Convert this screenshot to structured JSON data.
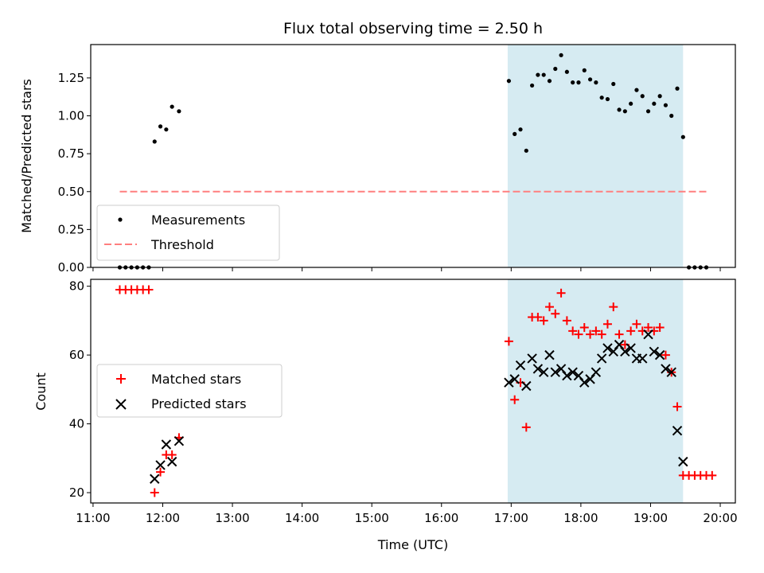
{
  "chart_data": {
    "title": "Flux total observing time = 2.50 h",
    "xlabel": "Time (UTC)",
    "x_ticks": [
      "11:00",
      "12:00",
      "13:00",
      "14:00",
      "15:00",
      "16:00",
      "17:00",
      "18:00",
      "19:00",
      "20:00"
    ],
    "xlim": [
      "10:58",
      "20:13"
    ],
    "shaded_region": {
      "x0": "16:57",
      "x1": "19:28",
      "color": "#add8e6"
    },
    "panels": [
      {
        "type": "scatter",
        "ylabel": "Matched/Predicted stars",
        "ylim": [
          0,
          1.47
        ],
        "y_ticks": [
          "0.00",
          "0.25",
          "0.50",
          "0.75",
          "1.00",
          "1.25"
        ],
        "legend": {
          "position": "lower-left",
          "entries": [
            "Measurements",
            "Threshold"
          ]
        },
        "series": [
          {
            "name": "Measurements",
            "marker": "dot",
            "color": "#000000",
            "points": [
              [
                "11:23",
                0
              ],
              [
                "11:28",
                0
              ],
              [
                "11:33",
                0
              ],
              [
                "11:38",
                0
              ],
              [
                "11:43",
                0
              ],
              [
                "11:48",
                0
              ],
              [
                "11:53",
                0.83
              ],
              [
                "11:58",
                0.93
              ],
              [
                "12:03",
                0.91
              ],
              [
                "12:08",
                1.06
              ],
              [
                "12:14",
                1.03
              ],
              [
                "16:58",
                1.23
              ],
              [
                "17:03",
                0.88
              ],
              [
                "17:08",
                0.91
              ],
              [
                "17:13",
                0.77
              ],
              [
                "17:18",
                1.2
              ],
              [
                "17:23",
                1.27
              ],
              [
                "17:28",
                1.27
              ],
              [
                "17:33",
                1.23
              ],
              [
                "17:38",
                1.31
              ],
              [
                "17:43",
                1.4
              ],
              [
                "17:48",
                1.29
              ],
              [
                "17:53",
                1.22
              ],
              [
                "17:58",
                1.22
              ],
              [
                "18:03",
                1.3
              ],
              [
                "18:08",
                1.24
              ],
              [
                "18:13",
                1.22
              ],
              [
                "18:18",
                1.12
              ],
              [
                "18:23",
                1.11
              ],
              [
                "18:28",
                1.21
              ],
              [
                "18:33",
                1.04
              ],
              [
                "18:38",
                1.03
              ],
              [
                "18:43",
                1.08
              ],
              [
                "18:48",
                1.17
              ],
              [
                "18:53",
                1.13
              ],
              [
                "18:58",
                1.03
              ],
              [
                "19:03",
                1.08
              ],
              [
                "19:08",
                1.13
              ],
              [
                "19:13",
                1.07
              ],
              [
                "19:18",
                1.0
              ],
              [
                "19:23",
                1.18
              ],
              [
                "19:28",
                0.86
              ],
              [
                "19:33",
                0
              ],
              [
                "19:38",
                0
              ],
              [
                "19:43",
                0
              ],
              [
                "19:48",
                0
              ]
            ]
          },
          {
            "name": "Threshold",
            "type": "line",
            "style": "dashed",
            "color": "#ff7f7f",
            "points": [
              [
                "11:23",
                0.5
              ],
              [
                "19:48",
                0.5
              ]
            ]
          }
        ]
      },
      {
        "type": "scatter",
        "ylabel": "Count",
        "ylim": [
          17,
          82
        ],
        "y_ticks": [
          "20",
          "40",
          "60",
          "80"
        ],
        "legend": {
          "position": "center-left",
          "entries": [
            "Matched stars",
            "Predicted stars"
          ]
        },
        "series": [
          {
            "name": "Matched stars",
            "marker": "plus",
            "color": "#ff0000",
            "points": [
              [
                "11:23",
                79
              ],
              [
                "11:28",
                79
              ],
              [
                "11:33",
                79
              ],
              [
                "11:38",
                79
              ],
              [
                "11:43",
                79
              ],
              [
                "11:48",
                79
              ],
              [
                "11:53",
                20
              ],
              [
                "11:58",
                26
              ],
              [
                "12:03",
                31
              ],
              [
                "12:08",
                31
              ],
              [
                "12:14",
                36
              ],
              [
                "16:58",
                64
              ],
              [
                "17:03",
                47
              ],
              [
                "17:08",
                52
              ],
              [
                "17:13",
                39
              ],
              [
                "17:18",
                71
              ],
              [
                "17:23",
                71
              ],
              [
                "17:28",
                70
              ],
              [
                "17:33",
                74
              ],
              [
                "17:38",
                72
              ],
              [
                "17:43",
                78
              ],
              [
                "17:48",
                70
              ],
              [
                "17:53",
                67
              ],
              [
                "17:58",
                66
              ],
              [
                "18:03",
                68
              ],
              [
                "18:08",
                66
              ],
              [
                "18:13",
                67
              ],
              [
                "18:18",
                66
              ],
              [
                "18:23",
                69
              ],
              [
                "18:28",
                74
              ],
              [
                "18:33",
                66
              ],
              [
                "18:38",
                63
              ],
              [
                "18:43",
                67
              ],
              [
                "18:48",
                69
              ],
              [
                "18:53",
                67
              ],
              [
                "18:58",
                68
              ],
              [
                "19:03",
                67
              ],
              [
                "19:08",
                68
              ],
              [
                "19:13",
                60
              ],
              [
                "19:18",
                55
              ],
              [
                "19:23",
                45
              ],
              [
                "19:28",
                25
              ],
              [
                "19:33",
                25
              ],
              [
                "19:38",
                25
              ],
              [
                "19:43",
                25
              ],
              [
                "19:48",
                25
              ],
              [
                "19:53",
                25
              ]
            ]
          },
          {
            "name": "Predicted stars",
            "marker": "x",
            "color": "#000000",
            "points": [
              [
                "11:53",
                24
              ],
              [
                "11:58",
                28
              ],
              [
                "12:03",
                34
              ],
              [
                "12:08",
                29
              ],
              [
                "12:14",
                35
              ],
              [
                "16:58",
                52
              ],
              [
                "17:03",
                53
              ],
              [
                "17:08",
                57
              ],
              [
                "17:13",
                51
              ],
              [
                "17:18",
                59
              ],
              [
                "17:23",
                56
              ],
              [
                "17:28",
                55
              ],
              [
                "17:33",
                60
              ],
              [
                "17:38",
                55
              ],
              [
                "17:43",
                56
              ],
              [
                "17:48",
                54
              ],
              [
                "17:53",
                55
              ],
              [
                "17:58",
                54
              ],
              [
                "18:03",
                52
              ],
              [
                "18:08",
                53
              ],
              [
                "18:13",
                55
              ],
              [
                "18:18",
                59
              ],
              [
                "18:23",
                62
              ],
              [
                "18:28",
                61
              ],
              [
                "18:33",
                63
              ],
              [
                "18:38",
                61
              ],
              [
                "18:43",
                62
              ],
              [
                "18:48",
                59
              ],
              [
                "18:53",
                59
              ],
              [
                "18:58",
                66
              ],
              [
                "19:03",
                61
              ],
              [
                "19:08",
                60
              ],
              [
                "19:13",
                56
              ],
              [
                "19:18",
                55
              ],
              [
                "19:23",
                38
              ],
              [
                "19:28",
                29
              ]
            ]
          }
        ]
      }
    ]
  }
}
